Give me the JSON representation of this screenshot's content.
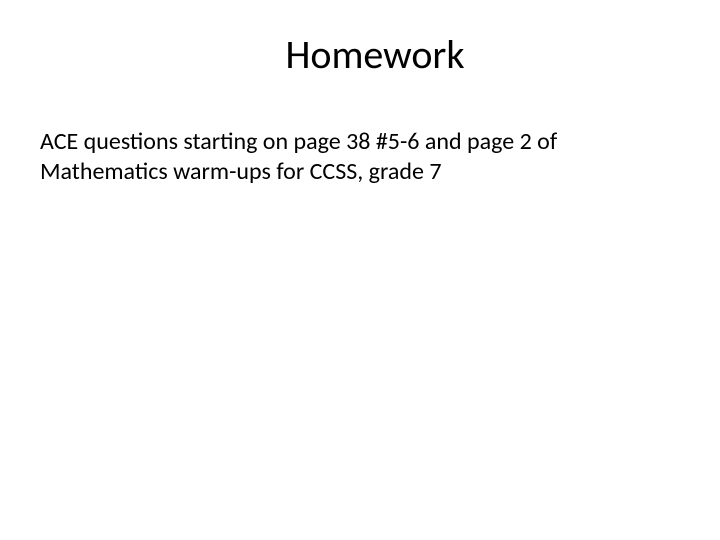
{
  "slide": {
    "title": "Homework",
    "body": "ACE questions starting on page 38 #5-6 and page 2 of Mathematics warm-ups for CCSS, grade 7"
  },
  "style": {
    "background_color": "#ffffff",
    "text_color": "#000000",
    "title_fontsize": 40,
    "body_fontsize": 24,
    "font_family": "Calibri"
  }
}
